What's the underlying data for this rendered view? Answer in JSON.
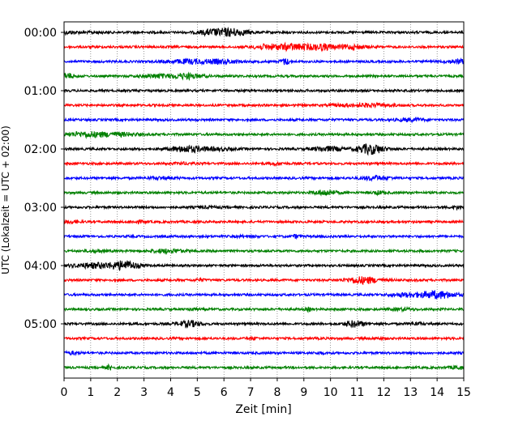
{
  "chart_data": {
    "type": "line",
    "title": "",
    "xlabel": "Zeit  [min]",
    "ylabel": "UTC (Lokalzeit = UTC + 02:00)",
    "xlim": [
      0,
      15
    ],
    "x_ticks": [
      0,
      1,
      2,
      3,
      4,
      5,
      6,
      7,
      8,
      9,
      10,
      11,
      12,
      13,
      14,
      15
    ],
    "x_tick_labels": [
      "0",
      "1",
      "2",
      "3",
      "4",
      "5",
      "6",
      "7",
      "8",
      "9",
      "10",
      "11",
      "12",
      "13",
      "14",
      "15"
    ],
    "y_tick_labels": [
      "00:00",
      "01:00",
      "02:00",
      "03:00",
      "04:00",
      "05:00"
    ],
    "y_tick_rows": [
      0,
      4,
      8,
      12,
      16,
      20
    ],
    "grid": "vertical-dotted",
    "row_interval_minutes": 15,
    "colors": [
      "#000000",
      "#ff0000",
      "#0000ff",
      "#008000"
    ],
    "rows": [
      {
        "utc": "00:00",
        "color": "#000000",
        "bursts": [
          [
            0.2,
            0.25,
            1.0
          ],
          [
            1.2,
            0.2,
            0.6
          ],
          [
            6.2,
            0.5,
            3.2
          ],
          [
            5.4,
            0.3,
            1.2
          ]
        ]
      },
      {
        "utc": "00:15",
        "color": "#ff0000",
        "bursts": [
          [
            8.5,
            0.7,
            2.4
          ],
          [
            9.7,
            0.3,
            2.0
          ],
          [
            10.8,
            0.4,
            1.6
          ],
          [
            7.5,
            0.3,
            1.0
          ]
        ]
      },
      {
        "utc": "00:30",
        "color": "#0000ff",
        "bursts": [
          [
            4.7,
            0.6,
            1.6
          ],
          [
            6.0,
            0.5,
            1.4
          ],
          [
            8.3,
            0.12,
            2.4
          ],
          [
            14.8,
            0.3,
            1.6
          ]
        ]
      },
      {
        "utc": "00:45",
        "color": "#008000",
        "bursts": [
          [
            0.1,
            0.2,
            2.2
          ],
          [
            3.5,
            0.4,
            1.4
          ],
          [
            4.6,
            0.4,
            2.0
          ]
        ]
      },
      {
        "utc": "01:00",
        "color": "#000000",
        "bursts": []
      },
      {
        "utc": "01:15",
        "color": "#ff0000",
        "bursts": [
          [
            11.5,
            0.6,
            1.2
          ],
          [
            10.4,
            0.3,
            0.6
          ]
        ]
      },
      {
        "utc": "01:30",
        "color": "#0000ff",
        "bursts": [
          [
            13.0,
            0.4,
            1.0
          ]
        ]
      },
      {
        "utc": "01:45",
        "color": "#008000",
        "bursts": [
          [
            0.9,
            0.6,
            2.0
          ],
          [
            2.2,
            0.5,
            1.2
          ]
        ]
      },
      {
        "utc": "02:00",
        "color": "#000000",
        "bursts": [
          [
            4.6,
            0.4,
            2.4
          ],
          [
            9.9,
            0.4,
            1.8
          ],
          [
            11.5,
            0.35,
            4.2
          ],
          [
            5.7,
            0.5,
            1.0
          ]
        ]
      },
      {
        "utc": "02:15",
        "color": "#ff0000",
        "bursts": [
          [
            8.0,
            0.15,
            1.0
          ],
          [
            4.5,
            0.3,
            0.6
          ]
        ]
      },
      {
        "utc": "02:30",
        "color": "#0000ff",
        "bursts": [
          [
            11.7,
            0.4,
            1.5
          ],
          [
            3.7,
            0.4,
            0.8
          ]
        ]
      },
      {
        "utc": "02:45",
        "color": "#008000",
        "bursts": [
          [
            9.8,
            0.3,
            2.0
          ],
          [
            11.8,
            0.15,
            1.2
          ]
        ]
      },
      {
        "utc": "03:00",
        "color": "#000000",
        "bursts": [
          [
            14.8,
            0.2,
            1.2
          ],
          [
            5.4,
            0.3,
            0.6
          ]
        ]
      },
      {
        "utc": "03:15",
        "color": "#ff0000",
        "bursts": [
          [
            0.3,
            0.2,
            1.0
          ],
          [
            2.8,
            0.2,
            0.8
          ]
        ]
      },
      {
        "utc": "03:30",
        "color": "#0000ff",
        "bursts": [
          [
            8.7,
            0.1,
            1.2
          ],
          [
            6.8,
            0.3,
            0.6
          ]
        ]
      },
      {
        "utc": "03:45",
        "color": "#008000",
        "bursts": [
          [
            3.9,
            0.4,
            1.5
          ],
          [
            1.2,
            0.3,
            0.8
          ]
        ]
      },
      {
        "utc": "04:00",
        "color": "#000000",
        "bursts": [
          [
            1.2,
            0.6,
            2.0
          ],
          [
            2.3,
            0.35,
            3.4
          ]
        ]
      },
      {
        "utc": "04:15",
        "color": "#ff0000",
        "bursts": [
          [
            11.2,
            0.45,
            2.8
          ],
          [
            5.1,
            0.1,
            1.0
          ]
        ]
      },
      {
        "utc": "04:30",
        "color": "#0000ff",
        "bursts": [
          [
            14.0,
            0.5,
            3.0
          ],
          [
            12.8,
            0.4,
            1.4
          ]
        ]
      },
      {
        "utc": "04:45",
        "color": "#008000",
        "bursts": [
          [
            4.8,
            0.08,
            1.4
          ],
          [
            9.2,
            0.08,
            1.4
          ],
          [
            12.7,
            0.3,
            0.8
          ]
        ]
      },
      {
        "utc": "05:00",
        "color": "#000000",
        "bursts": [
          [
            4.7,
            0.3,
            2.4
          ],
          [
            10.9,
            0.25,
            2.6
          ],
          [
            13.2,
            0.2,
            0.9
          ]
        ]
      },
      {
        "utc": "05:15",
        "color": "#ff0000",
        "bursts": [
          [
            7.1,
            0.1,
            1.0
          ],
          [
            11.8,
            0.2,
            0.6
          ]
        ]
      },
      {
        "utc": "05:30",
        "color": "#0000ff",
        "bursts": [
          [
            0.3,
            0.2,
            1.0
          ],
          [
            9.6,
            0.1,
            0.8
          ]
        ]
      },
      {
        "utc": "05:45",
        "color": "#008000",
        "bursts": [
          [
            1.7,
            0.07,
            1.8
          ],
          [
            14.8,
            0.2,
            1.2
          ]
        ]
      }
    ]
  }
}
